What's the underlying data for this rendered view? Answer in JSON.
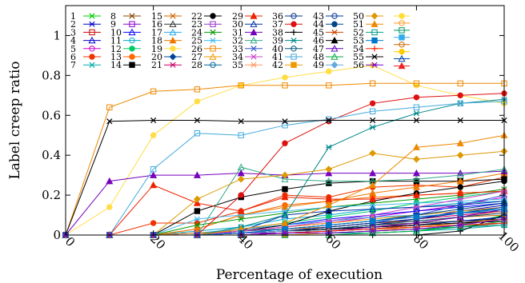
{
  "chart_data": {
    "type": "line",
    "title": "",
    "xlabel": "Percentage of execution",
    "ylabel": "Label creep ratio",
    "xlim": [
      0,
      100
    ],
    "ylim": [
      0,
      1.15
    ],
    "xticks": [
      0,
      20,
      40,
      60,
      80,
      100
    ],
    "xtick_labels": [
      "0",
      "20",
      "40",
      "60",
      "80",
      "100"
    ],
    "yticks": [
      0,
      0.2,
      0.4,
      0.6,
      0.8,
      1
    ],
    "ytick_labels": [
      "0",
      "0.2",
      "0.4",
      "0.6",
      "0.8",
      "1"
    ],
    "grid": false,
    "legend_position": "top-left, inside plot, 8 columns",
    "x": [
      0,
      10,
      20,
      30,
      40,
      50,
      60,
      70,
      80,
      90,
      100
    ],
    "series": [
      {
        "name": "1",
        "color": "#00cc00",
        "marker": "x",
        "values": [
          0,
          0,
          0,
          0,
          0,
          0.01,
          0.01,
          0.01,
          0.02,
          0.05,
          0.1
        ]
      },
      {
        "name": "2",
        "color": "#0000cc",
        "marker": "star",
        "values": [
          0,
          0,
          0,
          0,
          0.01,
          0.02,
          0.03,
          0.05,
          0.08,
          0.12,
          0.15
        ]
      },
      {
        "name": "3",
        "color": "#cc0000",
        "marker": "square-open",
        "values": [
          0,
          0,
          0,
          0,
          0.01,
          0.01,
          0.02,
          0.04,
          0.06,
          0.09,
          0.12
        ]
      },
      {
        "name": "4",
        "color": "#0000cc",
        "marker": "triangle-open",
        "values": [
          0,
          0,
          0,
          0,
          0,
          0.01,
          0.02,
          0.03,
          0.05,
          0.06,
          0.09
        ]
      },
      {
        "name": "5",
        "color": "#cc00cc",
        "marker": "circle-open",
        "values": [
          0,
          0,
          0,
          0.01,
          0.02,
          0.04,
          0.06,
          0.09,
          0.12,
          0.15,
          0.19
        ]
      },
      {
        "name": "6",
        "color": "#ee3300",
        "marker": "circle",
        "values": [
          0,
          0,
          0.06,
          0.06,
          0.12,
          0.2,
          0.19,
          0.24,
          0.25,
          0.24,
          0.29
        ]
      },
      {
        "name": "7",
        "color": "#00aaaa",
        "marker": "x",
        "values": [
          0,
          0,
          0,
          0,
          0,
          0,
          0.01,
          0.01,
          0.02,
          0.03,
          0.05
        ]
      },
      {
        "name": "8",
        "color": "#884400",
        "marker": "star",
        "values": [
          0,
          0,
          0,
          0,
          0,
          0.01,
          0.01,
          0.02,
          0.03,
          0.04,
          0.06
        ]
      },
      {
        "name": "9",
        "color": "#8800cc",
        "marker": "square-open",
        "values": [
          0,
          0,
          0,
          0.01,
          0.01,
          0.02,
          0.03,
          0.04,
          0.05,
          0.07,
          0.09
        ]
      },
      {
        "name": "10",
        "color": "#0000ff",
        "marker": "triangle-open",
        "values": [
          0,
          0,
          0,
          0.01,
          0.02,
          0.05,
          0.08,
          0.1,
          0.12,
          0.14,
          0.16
        ]
      },
      {
        "name": "11",
        "color": "#00aacc",
        "marker": "circle-open",
        "values": [
          0,
          0,
          0,
          0.02,
          0.04,
          0.08,
          0.1,
          0.13,
          0.14,
          0.16,
          0.17
        ]
      },
      {
        "name": "12",
        "color": "#00cc66",
        "marker": "circle",
        "values": [
          0,
          0,
          0,
          0,
          0.03,
          0.06,
          0.09,
          0.12,
          0.16,
          0.19,
          0.22
        ]
      },
      {
        "name": "13",
        "color": "#ff6600",
        "marker": "circle",
        "values": [
          0,
          0,
          0,
          0.03,
          0.1,
          0.15,
          0.17,
          0.19,
          0.2,
          0.21,
          0.22
        ]
      },
      {
        "name": "14",
        "color": "#000000",
        "marker": "square",
        "values": [
          0,
          0,
          0,
          0.12,
          0.19,
          0.23,
          0.26,
          0.27,
          0.27,
          0.27,
          0.28
        ]
      },
      {
        "name": "15",
        "color": "#cc6600",
        "marker": "star",
        "values": [
          0,
          0,
          0,
          0,
          0.02,
          0.03,
          0.04,
          0.06,
          0.07,
          0.09,
          0.1
        ]
      },
      {
        "name": "16",
        "color": "#333333",
        "marker": "triangle-open",
        "values": [
          0,
          0,
          0,
          0,
          0.01,
          0.02,
          0.03,
          0.05,
          0.06,
          0.07,
          0.08
        ]
      },
      {
        "name": "17",
        "color": "#22aaee",
        "marker": "triangle-open",
        "values": [
          0,
          0,
          0,
          0.01,
          0.03,
          0.05,
          0.07,
          0.09,
          0.1,
          0.12,
          0.13
        ]
      },
      {
        "name": "18",
        "color": "#ee7700",
        "marker": "triangle",
        "values": [
          0,
          0,
          0,
          0.03,
          0.1,
          0.14,
          0.17,
          0.21,
          0.24,
          0.27,
          0.31
        ]
      },
      {
        "name": "19",
        "color": "#ffdd44",
        "marker": "circle",
        "values": [
          0,
          0.14,
          0.5,
          0.67,
          0.75,
          0.79,
          0.82,
          0.85,
          0.75,
          0.7,
          0.66
        ]
      },
      {
        "name": "20",
        "color": "#004499",
        "marker": "diamond",
        "values": [
          0,
          0,
          0,
          0,
          0.02,
          0.03,
          0.05,
          0.07,
          0.09,
          0.11,
          0.12
        ]
      },
      {
        "name": "21",
        "color": "#cc0066",
        "marker": "star",
        "values": [
          0,
          0,
          0,
          0,
          0.01,
          0.02,
          0.04,
          0.06,
          0.08,
          0.1,
          0.12
        ]
      },
      {
        "name": "22",
        "color": "#000000",
        "marker": "circle",
        "values": [
          0,
          0,
          0,
          0,
          0.02,
          0.05,
          0.12,
          0.17,
          0.21,
          0.24,
          0.27
        ]
      },
      {
        "name": "23",
        "color": "#9933cc",
        "marker": "square-open",
        "values": [
          0,
          0,
          0,
          0.01,
          0.01,
          0.02,
          0.03,
          0.04,
          0.05,
          0.06,
          0.07
        ]
      },
      {
        "name": "24",
        "color": "#009900",
        "marker": "x",
        "values": [
          0,
          0,
          0,
          0.05,
          0.08,
          0.11,
          0.14,
          0.16,
          0.18,
          0.2,
          0.23
        ]
      },
      {
        "name": "25",
        "color": "#44bbee",
        "marker": "star",
        "values": [
          0,
          0,
          0,
          0.08,
          0.1,
          0.12,
          0.14,
          0.15,
          0.16,
          0.17,
          0.18
        ]
      },
      {
        "name": "26",
        "color": "#ee8800",
        "marker": "square-open",
        "values": [
          0,
          0.64,
          0.72,
          0.73,
          0.75,
          0.75,
          0.75,
          0.76,
          0.76,
          0.76,
          0.76
        ]
      },
      {
        "name": "27",
        "color": "#ee9900",
        "marker": "triangle-open",
        "values": [
          0,
          0,
          0,
          0.01,
          0.02,
          0.04,
          0.06,
          0.08,
          0.1,
          0.12,
          0.14
        ]
      },
      {
        "name": "28",
        "color": "#006699",
        "marker": "circle-open",
        "values": [
          0,
          0,
          0,
          0,
          0.01,
          0.02,
          0.03,
          0.04,
          0.05,
          0.07,
          0.09
        ]
      },
      {
        "name": "29",
        "color": "#ee2200",
        "marker": "triangle",
        "values": [
          0,
          0,
          0.25,
          0.16,
          0.12,
          0.19,
          0.18,
          0.18,
          0.2,
          0.21,
          0.22
        ]
      },
      {
        "name": "30",
        "color": "#0033aa",
        "marker": "triangle-open",
        "values": [
          0,
          0,
          0,
          0,
          0.02,
          0.1,
          0.12,
          0.13,
          0.14,
          0.15,
          0.17
        ]
      },
      {
        "name": "31",
        "color": "#7700bb",
        "marker": "triangle",
        "values": [
          0,
          0.27,
          0.3,
          0.3,
          0.31,
          0.3,
          0.31,
          0.31,
          0.31,
          0.31,
          0.32
        ]
      },
      {
        "name": "32",
        "color": "#33aa88",
        "marker": "triangle-open",
        "values": [
          0,
          0,
          0,
          0,
          0.34,
          0.28,
          0.27,
          0.27,
          0.28,
          0.3,
          0.33
        ]
      },
      {
        "name": "33",
        "color": "#3355cc",
        "marker": "x",
        "values": [
          0,
          0,
          0,
          0,
          0.01,
          0.02,
          0.04,
          0.06,
          0.1,
          0.15,
          0.2
        ]
      },
      {
        "name": "34",
        "color": "#cc44cc",
        "marker": "star",
        "values": [
          0,
          0,
          0,
          0,
          0.02,
          0.04,
          0.07,
          0.1,
          0.14,
          0.18,
          0.22
        ]
      },
      {
        "name": "35",
        "color": "#ff9966",
        "marker": "star",
        "values": [
          0,
          0,
          0,
          0,
          0,
          0.01,
          0.02,
          0.04,
          0.06,
          0.09,
          0.12
        ]
      },
      {
        "name": "36",
        "color": "#003388",
        "marker": "circle-open",
        "values": [
          0,
          0,
          0,
          0,
          0.01,
          0.02,
          0.04,
          0.06,
          0.08,
          0.11,
          0.14
        ]
      },
      {
        "name": "37",
        "color": "#dd1111",
        "marker": "circle",
        "values": [
          0,
          0,
          0,
          0,
          0.2,
          0.46,
          0.57,
          0.66,
          0.69,
          0.7,
          0.71
        ]
      },
      {
        "name": "38",
        "color": "#000000",
        "marker": "plus",
        "values": [
          0,
          0,
          0,
          0,
          0,
          0,
          0,
          0,
          0,
          0.02,
          0.1
        ]
      },
      {
        "name": "39",
        "color": "#008888",
        "marker": "star",
        "values": [
          0,
          0,
          0,
          0,
          0.04,
          0.1,
          0.44,
          0.54,
          0.61,
          0.66,
          0.68
        ]
      },
      {
        "name": "40",
        "color": "#005577",
        "marker": "circle-open",
        "values": [
          0,
          0,
          0,
          0,
          0.01,
          0.02,
          0.03,
          0.05,
          0.07,
          0.09,
          0.11
        ]
      },
      {
        "name": "41",
        "color": "#44aadd",
        "marker": "square-open",
        "values": [
          0,
          0,
          0.33,
          0.51,
          0.5,
          0.55,
          0.58,
          0.62,
          0.64,
          0.66,
          0.67
        ]
      },
      {
        "name": "42",
        "color": "#ee9900",
        "marker": "square",
        "values": [
          0,
          0,
          0,
          0,
          0,
          0,
          0.01,
          0.02,
          0.04,
          0.06,
          0.08
        ]
      },
      {
        "name": "43",
        "color": "#003399",
        "marker": "circle-open",
        "values": [
          0,
          0,
          0,
          0,
          0.01,
          0.02,
          0.02,
          0.03,
          0.05,
          0.07,
          0.09
        ]
      },
      {
        "name": "44",
        "color": "#004488",
        "marker": "circle",
        "values": [
          0,
          0,
          0,
          0,
          0.01,
          0.03,
          0.05,
          0.07,
          0.1,
          0.13,
          0.16
        ]
      },
      {
        "name": "45",
        "color": "#cc4400",
        "marker": "star",
        "values": [
          0,
          0,
          0,
          0,
          0,
          0.01,
          0.02,
          0.03,
          0.05,
          0.06,
          0.07
        ]
      },
      {
        "name": "46",
        "color": "#000000",
        "marker": "triangle",
        "values": [
          0,
          0,
          0,
          0,
          0.01,
          0.02,
          0.03,
          0.04,
          0.05,
          0.06,
          0.07
        ]
      },
      {
        "name": "47",
        "color": "#6600bb",
        "marker": "triangle-open",
        "values": [
          0,
          0,
          0,
          0,
          0.01,
          0.01,
          0.02,
          0.04,
          0.06,
          0.09,
          0.13
        ]
      },
      {
        "name": "48",
        "color": "#00aa44",
        "marker": "triangle-open",
        "values": [
          0,
          0,
          0,
          0,
          0,
          0,
          0,
          0.01,
          0.02,
          0.04,
          0.07
        ]
      },
      {
        "name": "49",
        "color": "#66aadd",
        "marker": "diamond",
        "values": [
          0,
          0,
          0,
          0,
          0.01,
          0.02,
          0.02,
          0.03,
          0.04,
          0.05,
          0.06
        ]
      },
      {
        "name": "50",
        "color": "#dd9900",
        "marker": "diamond",
        "values": [
          0,
          0,
          0,
          0.18,
          0.28,
          0.3,
          0.33,
          0.41,
          0.38,
          0.4,
          0.42
        ]
      },
      {
        "name": "51",
        "color": "#ee8800",
        "marker": "triangle",
        "values": [
          0,
          0,
          0,
          0,
          0.03,
          0.06,
          0.15,
          0.25,
          0.44,
          0.46,
          0.5
        ]
      },
      {
        "name": "52",
        "color": "#009988",
        "marker": "square-open",
        "values": [
          0,
          0,
          0,
          0,
          0,
          0.01,
          0.01,
          0.02,
          0.03,
          0.04,
          0.05
        ]
      },
      {
        "name": "53",
        "color": "#0077cc",
        "marker": "square",
        "values": [
          0,
          0,
          0,
          0,
          0.01,
          0.03,
          0.05,
          0.07,
          0.09,
          0.11,
          0.13
        ]
      },
      {
        "name": "54",
        "color": "#ff2200",
        "marker": "plus",
        "values": [
          0,
          0,
          0,
          0,
          0,
          0.01,
          0.02,
          0.03,
          0.04,
          0.05,
          0.06
        ]
      },
      {
        "name": "55",
        "color": "#000000",
        "marker": "x",
        "values": [
          0,
          0.57,
          0.575,
          0.575,
          0.57,
          0.57,
          0.575,
          0.575,
          0.575,
          0.575,
          0.575
        ]
      },
      {
        "name": "56",
        "color": "#7700cc",
        "marker": "star",
        "values": [
          0,
          0,
          0,
          0,
          0,
          0.01,
          0.01,
          0.02,
          0.03,
          0.05,
          0.08
        ]
      }
    ],
    "legend_extra_markers": [
      {
        "color": "#ffdd33",
        "marker": "circle"
      },
      {
        "color": "#ff9922",
        "marker": "circle-open"
      },
      {
        "color": "#009966",
        "marker": "square-open"
      },
      {
        "color": "#33aaee",
        "marker": "square"
      },
      {
        "color": "#cc6600",
        "marker": "circle-open"
      },
      {
        "color": "#ffcc00",
        "marker": "circle"
      },
      {
        "color": "#0044aa",
        "marker": "triangle-open"
      },
      {
        "color": "#ee2222",
        "marker": "triangle"
      }
    ]
  }
}
